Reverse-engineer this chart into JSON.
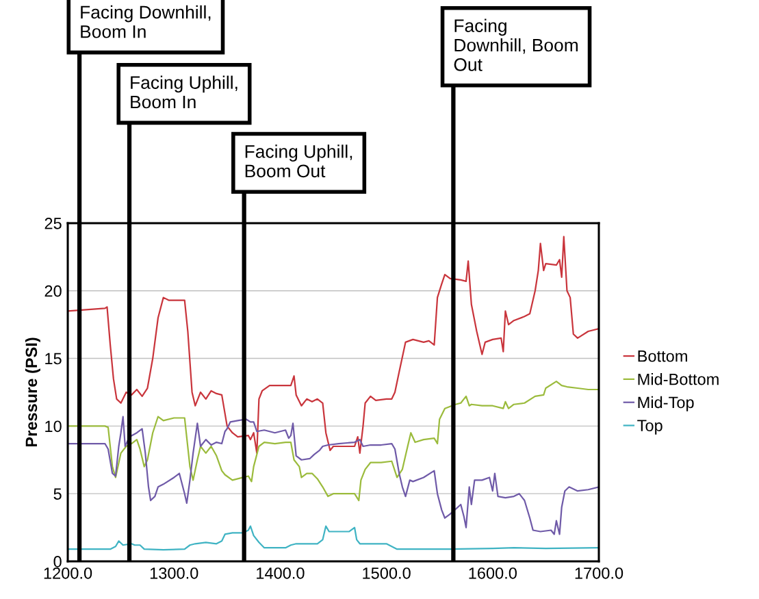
{
  "chart_data": {
    "type": "line",
    "ylabel": "Pressure (PSI)",
    "xlim": [
      1200,
      1700
    ],
    "xticks": [
      {
        "value": 1200,
        "label": "1200.0"
      },
      {
        "value": 1300,
        "label": "1300.0"
      },
      {
        "value": 1400,
        "label": "1400.0"
      },
      {
        "value": 1500,
        "label": "1500.0"
      },
      {
        "value": 1600,
        "label": "1600.0"
      },
      {
        "value": 1700,
        "label": "1700.0"
      }
    ],
    "ylim": [
      0,
      25
    ],
    "yticks": [
      0,
      5,
      10,
      15,
      20,
      25
    ],
    "grid": "y",
    "legend": "right",
    "marker": "none",
    "line_style": "solid",
    "ref_lines": [
      {
        "axis": "x",
        "value": 1211,
        "label": "Facing Downhill,\nBoom In",
        "color": "#000000"
      },
      {
        "axis": "x",
        "value": 1258,
        "label": "Facing Uphill,\nBoom In",
        "color": "#000000"
      },
      {
        "axis": "x",
        "value": 1366,
        "label": "Facing Uphill,\nBoom Out",
        "color": "#000000"
      },
      {
        "axis": "x",
        "value": 1563,
        "label": "Facing\nDownhill, Boom\nOut",
        "color": "#000000"
      }
    ],
    "series": [
      {
        "name": "Bottom",
        "color": "#c9353c",
        "x": [
          1200,
          1235,
          1237,
          1240,
          1243,
          1246,
          1250,
          1255,
          1260,
          1265,
          1270,
          1275,
          1280,
          1285,
          1290,
          1295,
          1300,
          1310,
          1313,
          1317,
          1320,
          1325,
          1330,
          1335,
          1340,
          1345,
          1350,
          1355,
          1360,
          1370,
          1372,
          1375,
          1378,
          1380,
          1383,
          1390,
          1400,
          1410,
          1413,
          1415,
          1420,
          1425,
          1430,
          1435,
          1440,
          1443,
          1447,
          1450,
          1460,
          1470,
          1473,
          1475,
          1478,
          1480,
          1485,
          1490,
          1500,
          1505,
          1508,
          1512,
          1518,
          1525,
          1535,
          1540,
          1545,
          1548,
          1552,
          1555,
          1560,
          1570,
          1575,
          1577,
          1580,
          1585,
          1590,
          1593,
          1600,
          1608,
          1610,
          1612,
          1615,
          1620,
          1630,
          1635,
          1640,
          1643,
          1645,
          1648,
          1650,
          1660,
          1663,
          1665,
          1667,
          1670,
          1673,
          1676,
          1680,
          1690,
          1700
        ],
        "values": [
          18.5,
          18.7,
          18.8,
          16,
          13.5,
          12,
          11.7,
          12.5,
          12.3,
          12.7,
          12.2,
          12.8,
          15,
          18,
          19.5,
          19.3,
          19.3,
          19.3,
          17,
          12.5,
          11.5,
          12.5,
          12,
          12.6,
          12.4,
          12.3,
          10,
          9.5,
          9.2,
          9.3,
          9,
          9.5,
          8,
          12,
          12.6,
          13,
          13,
          13,
          13.7,
          12.3,
          11.5,
          12,
          11.8,
          12,
          11.7,
          9.5,
          8.2,
          8.5,
          8.5,
          8.5,
          9.2,
          8,
          10,
          11.7,
          12.2,
          11.9,
          12,
          12,
          12.5,
          14,
          16.2,
          16.4,
          16.2,
          16.3,
          16,
          19.5,
          20.5,
          21.2,
          20.9,
          20.8,
          20.7,
          22.2,
          19,
          17,
          15.3,
          16.2,
          16.4,
          16.5,
          15.5,
          18.5,
          17.5,
          17.8,
          18.1,
          18.3,
          20,
          21.5,
          23.5,
          21.5,
          22,
          21.9,
          22.3,
          21,
          24,
          20,
          19.5,
          16.8,
          16.5,
          17,
          17.2
        ]
      },
      {
        "name": "Mid-Bottom",
        "color": "#9bbb3c",
        "x": [
          1200,
          1235,
          1238,
          1242,
          1245,
          1250,
          1255,
          1260,
          1265,
          1268,
          1272,
          1275,
          1280,
          1285,
          1290,
          1300,
          1310,
          1315,
          1318,
          1322,
          1325,
          1330,
          1335,
          1340,
          1345,
          1348,
          1355,
          1365,
          1370,
          1373,
          1375,
          1380,
          1385,
          1395,
          1405,
          1410,
          1413,
          1418,
          1420,
          1425,
          1430,
          1435,
          1440,
          1445,
          1450,
          1460,
          1470,
          1474,
          1476,
          1480,
          1485,
          1495,
          1505,
          1510,
          1515,
          1520,
          1523,
          1527,
          1535,
          1545,
          1548,
          1550,
          1555,
          1565,
          1570,
          1575,
          1578,
          1580,
          1590,
          1600,
          1610,
          1612,
          1615,
          1620,
          1630,
          1640,
          1648,
          1650,
          1660,
          1665,
          1670,
          1680,
          1690,
          1700
        ],
        "values": [
          10,
          10,
          9.9,
          7,
          6.2,
          8,
          8.5,
          8.7,
          9,
          8.3,
          7,
          7.5,
          9.5,
          10.7,
          10.4,
          10.6,
          10.6,
          7,
          6,
          7.5,
          8.5,
          8,
          8.5,
          7.8,
          6.7,
          6.4,
          6,
          6.2,
          6.3,
          5.9,
          7,
          8.5,
          8.8,
          8.7,
          8.8,
          8.8,
          7.5,
          7,
          6.2,
          6.5,
          6.5,
          6.1,
          5.5,
          4.8,
          5,
          5,
          5,
          4.5,
          6,
          6.8,
          7.3,
          7.3,
          7.4,
          6.2,
          6.8,
          8.5,
          9.5,
          8.8,
          9,
          9.1,
          8.7,
          10.5,
          11.3,
          11.6,
          11.7,
          12.2,
          11.5,
          11.6,
          11.5,
          11.5,
          11.3,
          11.8,
          11.3,
          11.6,
          11.7,
          12.2,
          12.3,
          12.8,
          13.3,
          13,
          12.9,
          12.8,
          12.7,
          12.7
        ]
      },
      {
        "name": "Mid-Top",
        "color": "#6f5aa8",
        "x": [
          1200,
          1235,
          1238,
          1242,
          1245,
          1248,
          1250,
          1252,
          1254,
          1258,
          1265,
          1270,
          1273,
          1276,
          1278,
          1282,
          1285,
          1290,
          1300,
          1305,
          1310,
          1312,
          1315,
          1318,
          1322,
          1325,
          1330,
          1335,
          1340,
          1345,
          1348,
          1350,
          1353,
          1360,
          1368,
          1372,
          1375,
          1378,
          1385,
          1395,
          1405,
          1408,
          1410,
          1412,
          1415,
          1420,
          1428,
          1432,
          1437,
          1440,
          1445,
          1455,
          1470,
          1475,
          1478,
          1485,
          1495,
          1505,
          1508,
          1512,
          1515,
          1518,
          1522,
          1525,
          1535,
          1545,
          1548,
          1552,
          1555,
          1560,
          1570,
          1573,
          1575,
          1578,
          1580,
          1583,
          1590,
          1597,
          1600,
          1602,
          1605,
          1612,
          1620,
          1625,
          1630,
          1635,
          1638,
          1645,
          1655,
          1658,
          1660,
          1663,
          1665,
          1668,
          1672,
          1680,
          1690,
          1700
        ],
        "values": [
          8.7,
          8.7,
          8.3,
          6.5,
          6.3,
          8.5,
          9.5,
          10.7,
          8.5,
          9.2,
          9.5,
          9.8,
          8,
          5.5,
          4.5,
          4.8,
          5.5,
          5.7,
          6.2,
          6.5,
          5,
          4.3,
          6,
          8,
          10.2,
          8.5,
          9,
          8.6,
          8.8,
          8.7,
          9.6,
          9.8,
          10.3,
          10.4,
          10.5,
          10.3,
          10.3,
          9.6,
          9.7,
          9.5,
          9.7,
          9.1,
          9.3,
          10.2,
          7.8,
          7.5,
          7.6,
          7.9,
          8.2,
          8.5,
          8.6,
          8.7,
          8.8,
          9,
          8.5,
          8.6,
          8.6,
          8.7,
          8.3,
          6.5,
          5.5,
          4.8,
          6,
          5.9,
          6.2,
          6.7,
          5,
          3.8,
          3.2,
          3.5,
          4.2,
          3.3,
          2.5,
          5.5,
          4.2,
          6,
          6,
          6.2,
          5.2,
          6.5,
          4.8,
          4.7,
          4.8,
          5,
          4.5,
          3.2,
          2.3,
          2.2,
          2.3,
          2,
          3,
          2,
          4,
          5.2,
          5.5,
          5.2,
          5.3,
          5.5
        ]
      },
      {
        "name": "Top",
        "color": "#3fb3c3",
        "x": [
          1200,
          1240,
          1245,
          1248,
          1252,
          1260,
          1263,
          1268,
          1272,
          1290,
          1310,
          1315,
          1320,
          1330,
          1340,
          1345,
          1348,
          1355,
          1365,
          1370,
          1372,
          1375,
          1380,
          1385,
          1395,
          1405,
          1410,
          1415,
          1425,
          1435,
          1440,
          1443,
          1446,
          1455,
          1465,
          1470,
          1472,
          1475,
          1485,
          1500,
          1505,
          1510,
          1520,
          1560,
          1600,
          1620,
          1650,
          1700
        ],
        "values": [
          0.9,
          0.9,
          1.1,
          1.5,
          1.2,
          1.3,
          1.2,
          1.2,
          0.9,
          0.85,
          0.9,
          1.2,
          1.3,
          1.4,
          1.3,
          1.5,
          2,
          2.1,
          2.1,
          2.3,
          2.6,
          1.9,
          1.4,
          1,
          1,
          1,
          1.2,
          1.3,
          1.3,
          1.3,
          1.6,
          2.6,
          2.2,
          2.2,
          2.2,
          2.5,
          1.6,
          1.3,
          1.3,
          1.3,
          1.1,
          0.9,
          0.9,
          0.9,
          0.95,
          1,
          0.95,
          1
        ]
      }
    ]
  }
}
